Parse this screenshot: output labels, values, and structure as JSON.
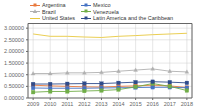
{
  "chart_data": {
    "type": "line",
    "x": [
      2009,
      2010,
      2011,
      2012,
      2013,
      2014,
      2015,
      2016,
      2017,
      2018
    ],
    "series": [
      {
        "name": "Argentina",
        "color": "#e8783c",
        "marker": "square",
        "values": [
          0.55,
          0.52,
          0.5,
          0.48,
          0.47,
          0.5,
          0.52,
          0.55,
          0.52,
          0.45
        ]
      },
      {
        "name": "Brazil",
        "color": "#b0b0b0",
        "marker": "triangle",
        "values": [
          1.05,
          1.05,
          1.08,
          1.08,
          1.1,
          1.15,
          1.2,
          1.25,
          1.15,
          1.12
        ]
      },
      {
        "name": "United States",
        "color": "#e8c840",
        "marker": "none",
        "values": [
          2.75,
          2.65,
          2.65,
          2.62,
          2.6,
          2.65,
          2.68,
          2.72,
          2.75,
          2.78
        ]
      },
      {
        "name": "Mexico",
        "color": "#4472c4",
        "marker": "square",
        "values": [
          0.43,
          0.42,
          0.42,
          0.42,
          0.43,
          0.44,
          0.45,
          0.46,
          0.46,
          0.44
        ]
      },
      {
        "name": "Venezuela",
        "color": "#70ad47",
        "marker": "square",
        "values": [
          0.25,
          0.28,
          0.28,
          0.3,
          0.32,
          0.36,
          0.48,
          0.62,
          0.5,
          0.32
        ]
      },
      {
        "name": "Latin America and the Caribbean",
        "color": "#2e4b8a",
        "marker": "square",
        "values": [
          0.6,
          0.6,
          0.61,
          0.62,
          0.62,
          0.65,
          0.68,
          0.7,
          0.68,
          0.65
        ]
      }
    ],
    "xlim": [
      2008.7,
      2018.3
    ],
    "xticks": [
      2009,
      2010,
      2011,
      2012,
      2013,
      2014,
      2015,
      2016,
      2017,
      2018
    ],
    "ylim": [
      0.0,
      3.2
    ],
    "yticks": [
      {
        "value": 0.0,
        "label": "0.00000"
      },
      {
        "value": 0.5,
        "label": "0.50000"
      },
      {
        "value": 1.0,
        "label": "1.00000"
      },
      {
        "value": 1.5,
        "label": "1.50000"
      },
      {
        "value": 2.0,
        "label": "2.00000"
      },
      {
        "value": 2.5,
        "label": "2.50000"
      },
      {
        "value": 3.0,
        "label": "3.00000"
      }
    ],
    "grid": true,
    "legend": "upper left"
  }
}
